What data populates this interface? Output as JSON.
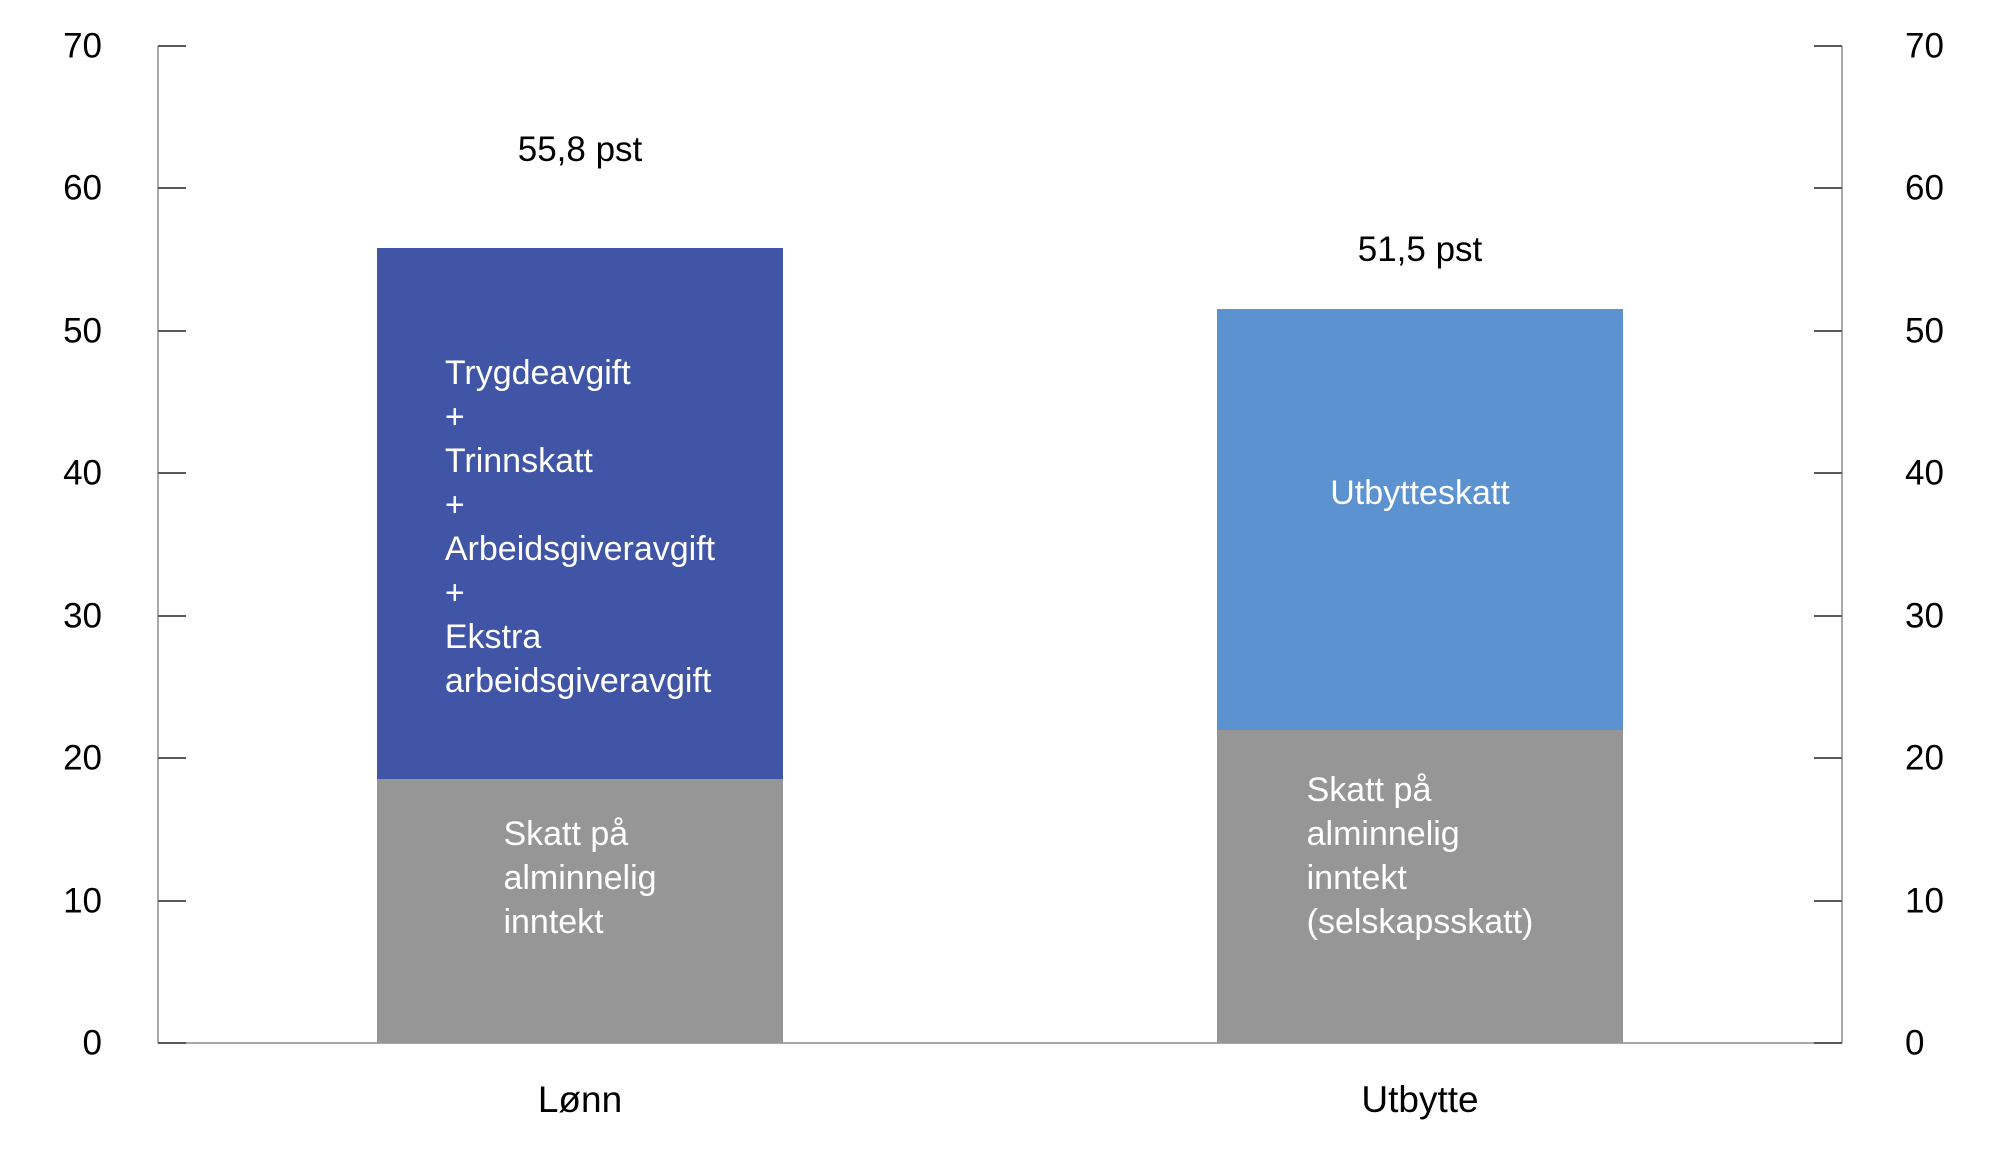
{
  "chart_data": {
    "type": "bar",
    "subtype": "stacked-vertical",
    "title": "",
    "xlabel": "",
    "ylabel": "",
    "unit": "pst",
    "grid": false,
    "legend": "none (labels drawn inside bars)",
    "y_axis": {
      "min": 0,
      "max": 70,
      "step": 10,
      "ticks": [
        0,
        10,
        20,
        30,
        40,
        50,
        60,
        70
      ],
      "sides": [
        "left",
        "right"
      ]
    },
    "categories": [
      "Lønn",
      "Utbytte"
    ],
    "bars": [
      {
        "category": "Lønn",
        "total": 55.8,
        "total_label": "55,8 pst",
        "segments": [
          {
            "name": "Skatt på alminnelig inntekt",
            "value": 18.5,
            "color": "#969696",
            "text_color": "#ffffff",
            "display_lines": [
              "Skatt på",
              "alminnelig",
              "inntekt"
            ]
          },
          {
            "name": "Trygdeavgift + Trinnskatt + Arbeidsgiveravgift + Ekstra arbeidsgiveravgift",
            "value": 37.3,
            "color": "#4155a6",
            "text_color": "#ffffff",
            "display_lines": [
              "Trygdeavgift",
              "+",
              "Trinnskatt",
              "+",
              "Arbeidsgiveravgift",
              "+",
              "Ekstra",
              "arbeidsgiveravgift"
            ]
          }
        ]
      },
      {
        "category": "Utbytte",
        "total": 51.5,
        "total_label": "51,5 pst",
        "segments": [
          {
            "name": "Skatt på alminnelig inntekt (selskapsskatt)",
            "value": 22.0,
            "color": "#969696",
            "text_color": "#ffffff",
            "display_lines": [
              "Skatt på",
              "alminnelig",
              "inntekt",
              "(selskapsskatt)"
            ]
          },
          {
            "name": "Utbytteskatt",
            "value": 29.5,
            "color": "#5b92cf",
            "text_color": "#ffffff",
            "display_lines": [
              "Utbytteskatt"
            ]
          }
        ]
      }
    ],
    "colors": {
      "background": "#ffffff",
      "axis_line": "#a8a8a8",
      "tick_mark": "#595959",
      "text": "#000000",
      "bar_text": "#ffffff",
      "gray_segment": "#969696",
      "dark_blue_segment": "#4155a6",
      "light_blue_segment": "#5b92cf"
    }
  }
}
